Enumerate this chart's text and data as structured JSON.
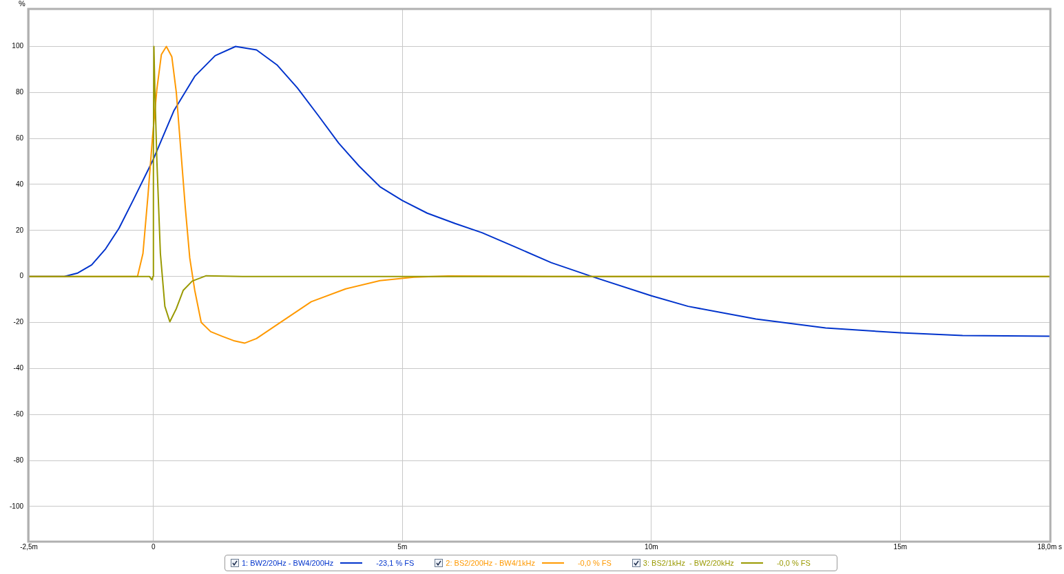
{
  "chart_data": {
    "type": "line",
    "ylabel": "%",
    "xlim": [
      -2.5,
      18
    ],
    "ylim": [
      -115,
      116
    ],
    "xticks": [
      {
        "value": -2.5,
        "label": "-2,5m"
      },
      {
        "value": 0,
        "label": "0"
      },
      {
        "value": 5,
        "label": "5m"
      },
      {
        "value": 10,
        "label": "10m"
      },
      {
        "value": 15,
        "label": "15m"
      },
      {
        "value": 18,
        "label": "18,0m s"
      }
    ],
    "yticks": [
      -100,
      -80,
      -60,
      -40,
      -20,
      0,
      20,
      40,
      60,
      80,
      100
    ],
    "grid": true,
    "legend": "bottom",
    "marker": "none",
    "line_style": "solid",
    "annotations": [
      "-23,1 % FS",
      "-0,0 % FS",
      "-0,0 % FS"
    ],
    "series": [
      {
        "name": "1: BW2/20Hz - BW4/200Hz",
        "color": "#0033cc",
        "x": [
          -2.5,
          -1.79,
          -1.52,
          -1.24,
          -0.96,
          -0.69,
          -0.41,
          0,
          0.41,
          0.83,
          1.24,
          1.65,
          2.07,
          2.48,
          2.89,
          3.31,
          3.72,
          4.13,
          4.55,
          5,
          5.5,
          6.06,
          6.6,
          7.3,
          7.99,
          8.8,
          10,
          10.74,
          12.1,
          13.5,
          15,
          16.25,
          18
        ],
        "values": [
          0,
          0,
          1.5,
          5,
          12,
          21,
          33,
          51,
          72,
          87,
          96,
          100,
          98.5,
          92,
          82,
          70,
          58,
          48,
          39,
          33,
          27.5,
          23,
          19,
          12.5,
          6,
          0,
          -8.4,
          -13,
          -18.5,
          -22.4,
          -24.5,
          -25.7,
          -26
        ]
      },
      {
        "name": "2: BS2/200Hz - BW4/1kHz",
        "color": "#ff9900",
        "x": [
          -2.5,
          -0.32,
          -0.21,
          -0.11,
          -0.02,
          0.07,
          0.16,
          0.26,
          0.37,
          0.46,
          0.55,
          0.64,
          0.73,
          0.83,
          0.96,
          1.15,
          1.38,
          1.61,
          1.83,
          2.07,
          2.48,
          3.17,
          3.86,
          4.55,
          5.23,
          5.92,
          8,
          18
        ],
        "values": [
          0,
          0,
          10,
          35,
          60,
          81.5,
          96.5,
          100,
          95.5,
          80,
          55,
          30,
          8,
          -6,
          -20,
          -24,
          -26,
          -27.9,
          -29,
          -27,
          -21,
          -11,
          -5.4,
          -1.8,
          -0.3,
          0.2,
          0,
          0
        ]
      },
      {
        "name": "3: BS2/1kHz  - BW2/20kHz",
        "color": "#999900",
        "x": [
          -2.5,
          -0.08,
          -0.03,
          -0.01,
          0,
          0.01,
          0.03,
          0.07,
          0.14,
          0.23,
          0.33,
          0.46,
          0.6,
          0.78,
          1.06,
          1.79,
          18
        ],
        "values": [
          0,
          0,
          -1.5,
          0,
          55,
          100,
          80,
          50,
          10,
          -13,
          -19.7,
          -14,
          -6,
          -2,
          0.3,
          0,
          0
        ]
      }
    ]
  }
}
